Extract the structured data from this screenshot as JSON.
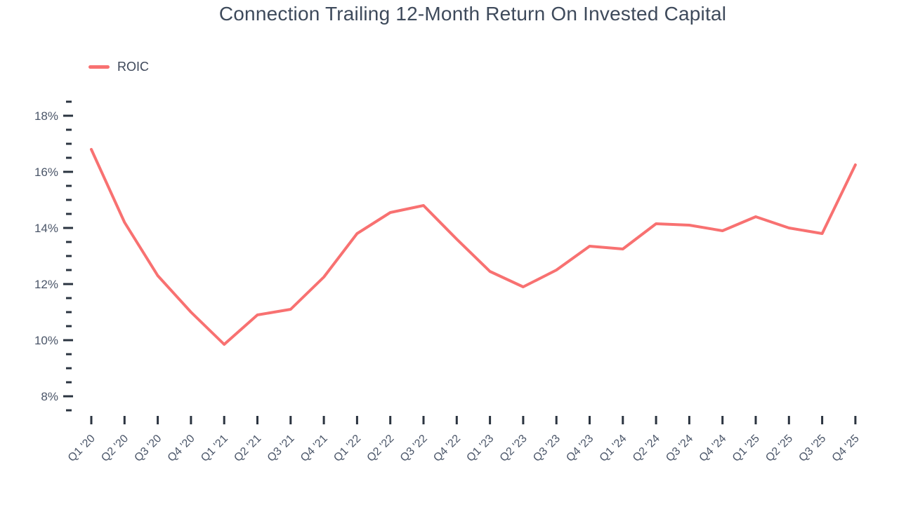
{
  "title": "Connection Trailing 12-Month Return On Invested Capital",
  "legend": {
    "label": "ROIC"
  },
  "colors": {
    "line": "#F87171",
    "title_text": "#3E4A5B",
    "legend_text": "#3D4759",
    "axis_text": "#4A5568",
    "tick": "#2B3440"
  },
  "chart_data": {
    "type": "line",
    "title": "Connection Trailing 12-Month Return On Invested Capital",
    "categories": [
      "Q1 '20",
      "Q2 '20",
      "Q3 '20",
      "Q4 '20",
      "Q1 '21",
      "Q2 '21",
      "Q3 '21",
      "Q4 '21",
      "Q1 '22",
      "Q2 '22",
      "Q3 '22",
      "Q4 '22",
      "Q1 '23",
      "Q2 '23",
      "Q3 '23",
      "Q4 '23",
      "Q1 '24",
      "Q2 '24",
      "Q3 '24",
      "Q4 '24",
      "Q1 '25",
      "Q2 '25",
      "Q3 '25",
      "Q4 '25"
    ],
    "series": [
      {
        "name": "ROIC",
        "values": [
          16.8,
          14.2,
          12.3,
          11.0,
          9.85,
          10.9,
          11.1,
          12.25,
          13.8,
          14.55,
          14.8,
          13.6,
          12.45,
          11.9,
          12.5,
          13.35,
          13.25,
          14.15,
          14.1,
          13.9,
          14.4,
          14.0,
          13.8,
          16.25
        ]
      }
    ],
    "xlabel": "",
    "ylabel": "",
    "y_unit": "%",
    "y_major_ticks": [
      8,
      10,
      12,
      14,
      16,
      18
    ],
    "y_tick_labels": [
      "8%",
      "10%",
      "12%",
      "14%",
      "16%",
      "18%"
    ],
    "y_minor_step": 0.5,
    "ylim": [
      7.5,
      18.5
    ],
    "grid": false,
    "legend_position": "top-left",
    "x_tick_count": 24
  }
}
